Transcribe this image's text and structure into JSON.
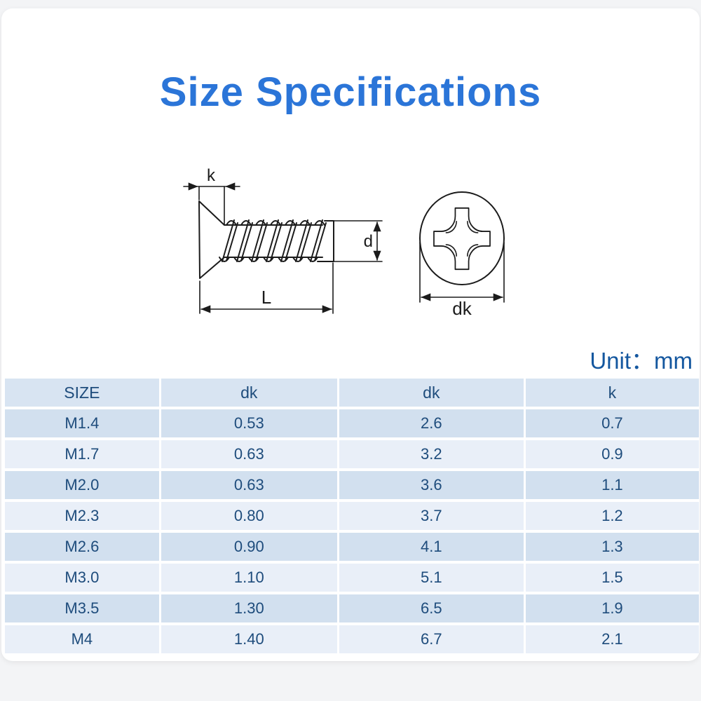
{
  "header": {
    "title": "Size Specifications",
    "unit": "Unit：mm"
  },
  "diagram": {
    "description": "countersunk flat head phillips screw, side view and head top view",
    "labels": {
      "k": "k",
      "d": "d",
      "L": "L",
      "dk": "dk"
    }
  },
  "table": {
    "headers": [
      "SIZE",
      "dk",
      "dk",
      "k"
    ],
    "rows": [
      [
        "M1.4",
        "0.53",
        "2.6",
        "0.7"
      ],
      [
        "M1.7",
        "0.63",
        "3.2",
        "0.9"
      ],
      [
        "M2.0",
        "0.63",
        "3.6",
        "1.1"
      ],
      [
        "M2.3",
        "0.80",
        "3.7",
        "1.2"
      ],
      [
        "M2.6",
        "0.90",
        "4.1",
        "1.3"
      ],
      [
        "M3.0",
        "1.10",
        "5.1",
        "1.5"
      ],
      [
        "M3.5",
        "1.30",
        "6.5",
        "1.9"
      ],
      [
        "M4",
        "1.40",
        "6.7",
        "2.1"
      ]
    ]
  },
  "colors": {
    "title_blue": "#2b75d8",
    "unit_blue": "#14579f",
    "table_text": "#1e4c7c",
    "header_row_bg": "#d8e4f2",
    "row_medium_bg": "#d2e0ef",
    "row_light_bg": "#e9eff8",
    "drawing_line": "#1b1b1b",
    "page_bg": "#f3f4f6",
    "card_bg": "#ffffff"
  }
}
